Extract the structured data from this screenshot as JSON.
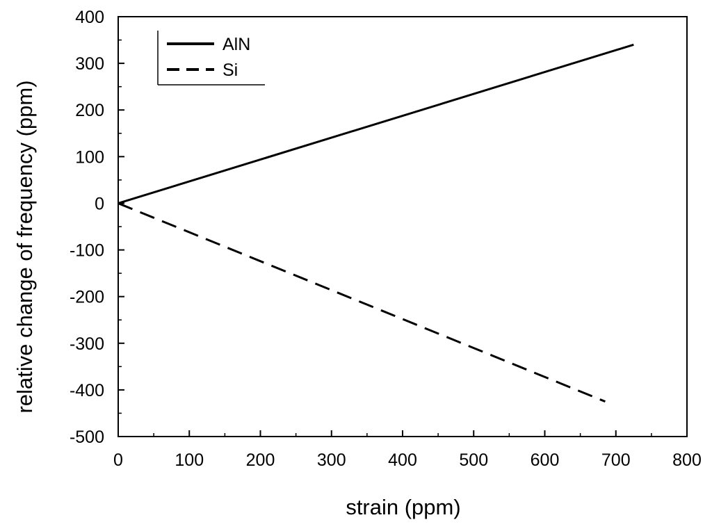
{
  "chart_data": {
    "type": "line",
    "title": "",
    "xlabel": "strain (ppm)",
    "ylabel": "relative change of frequency (ppm)",
    "xlim": [
      0,
      800
    ],
    "ylim": [
      -500,
      400
    ],
    "x_ticks": [
      0,
      100,
      200,
      300,
      400,
      500,
      600,
      700,
      800
    ],
    "y_ticks": [
      -500,
      -400,
      -300,
      -200,
      -100,
      0,
      100,
      200,
      300,
      400
    ],
    "x_tick_labels": [
      "0",
      "100",
      "200",
      "300",
      "400",
      "500",
      "600",
      "700",
      "800"
    ],
    "y_tick_labels": [
      "-500",
      "-400",
      "-300",
      "-200",
      "-100",
      "0",
      "100",
      "200",
      "300",
      "400"
    ],
    "grid": false,
    "legend_position": "top-left",
    "series": [
      {
        "name": "AlN",
        "line_style": "solid",
        "color": "#000000",
        "x": [
          0,
          725
        ],
        "y": [
          0,
          340
        ]
      },
      {
        "name": "Si",
        "line_style": "dashed",
        "color": "#000000",
        "x": [
          0,
          685
        ],
        "y": [
          0,
          -425
        ]
      }
    ]
  }
}
